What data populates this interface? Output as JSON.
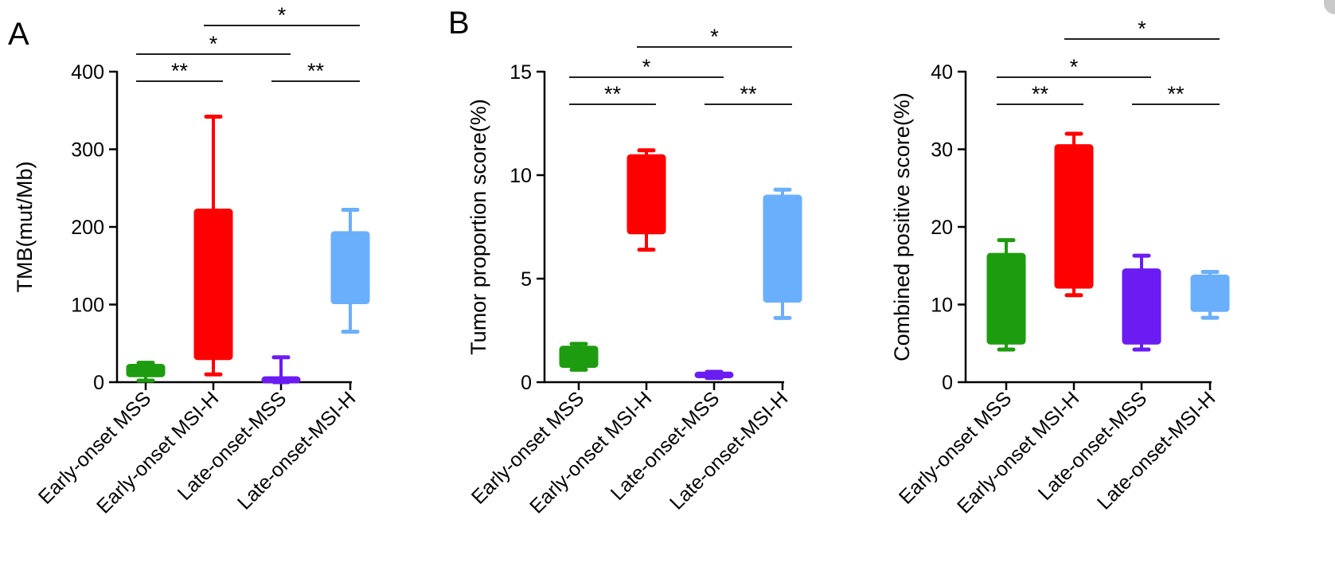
{
  "panel_letters": [
    "A",
    "B"
  ],
  "chart_data": [
    {
      "type": "box",
      "panel": "A",
      "title": "",
      "xlabel": "",
      "ylabel": "TMB(mut/Mb)",
      "ylim": [
        0,
        400
      ],
      "yticks": [
        0,
        100,
        200,
        300,
        400
      ],
      "categories": [
        "Early-onset MSS",
        "Early-onset MSI-H",
        "Late-onset-MSS",
        "Late-onset-MSI-H"
      ],
      "colors": [
        "#1e9c10",
        "#ff0000",
        "#6b1cf2",
        "#6aaffb"
      ],
      "boxes": [
        {
          "min": 2,
          "q1": 8,
          "q3": 22,
          "max": 25
        },
        {
          "min": 10,
          "q1": 30,
          "q3": 222,
          "max": 342
        },
        {
          "min": 0,
          "q1": 0,
          "q3": 6,
          "max": 32
        },
        {
          "min": 65,
          "q1": 102,
          "q3": 193,
          "max": 222
        }
      ],
      "significance": [
        {
          "from": 0,
          "to": 1,
          "label": "**",
          "level": 0
        },
        {
          "from": 2,
          "to": 3,
          "label": "**",
          "level": 0
        },
        {
          "from": 0,
          "to": 2,
          "label": "*",
          "level": 1
        },
        {
          "from": 1,
          "to": 3,
          "label": "*",
          "level": 2
        }
      ]
    },
    {
      "type": "box",
      "panel": "B",
      "title": "",
      "xlabel": "",
      "ylabel": "Tumor proportion score(%)",
      "ylim": [
        0,
        15
      ],
      "yticks": [
        0,
        5,
        10,
        15
      ],
      "categories": [
        "Early-onset MSS",
        "Early-onset MSI-H",
        "Late-onset-MSS",
        "Late-onset-MSI-H"
      ],
      "colors": [
        "#1e9c10",
        "#ff0000",
        "#6b1cf2",
        "#6aaffb"
      ],
      "boxes": [
        {
          "min": 0.6,
          "q1": 0.75,
          "q3": 1.7,
          "max": 1.85
        },
        {
          "min": 6.4,
          "q1": 7.2,
          "q3": 10.95,
          "max": 11.2
        },
        {
          "min": 0.2,
          "q1": 0.25,
          "q3": 0.45,
          "max": 0.5
        },
        {
          "min": 3.1,
          "q1": 3.9,
          "q3": 9.0,
          "max": 9.3
        }
      ],
      "significance": [
        {
          "from": 0,
          "to": 1,
          "label": "**",
          "level": 0
        },
        {
          "from": 2,
          "to": 3,
          "label": "**",
          "level": 0
        },
        {
          "from": 0,
          "to": 2,
          "label": "*",
          "level": 1
        },
        {
          "from": 1,
          "to": 3,
          "label": "*",
          "level": 2
        }
      ]
    },
    {
      "type": "box",
      "panel": "B",
      "title": "",
      "xlabel": "",
      "ylabel": "Combined positive score(%)",
      "ylim": [
        0,
        40
      ],
      "yticks": [
        0,
        10,
        20,
        30,
        40
      ],
      "categories": [
        "Early-onset MSS",
        "Early-onset MSI-H",
        "Late-onset-MSS",
        "Late-onset-MSI-H"
      ],
      "colors": [
        "#1e9c10",
        "#ff0000",
        "#6b1cf2",
        "#6aaffb"
      ],
      "boxes": [
        {
          "min": 4.2,
          "q1": 5,
          "q3": 16.5,
          "max": 18.3
        },
        {
          "min": 11.2,
          "q1": 12.2,
          "q3": 30.5,
          "max": 32
        },
        {
          "min": 4.2,
          "q1": 5,
          "q3": 14.5,
          "max": 16.3
        },
        {
          "min": 8.3,
          "q1": 9.2,
          "q3": 13.7,
          "max": 14.2
        }
      ],
      "significance": [
        {
          "from": 0,
          "to": 1,
          "label": "**",
          "level": 0
        },
        {
          "from": 2,
          "to": 3,
          "label": "**",
          "level": 0
        },
        {
          "from": 0,
          "to": 2,
          "label": "*",
          "level": 1
        },
        {
          "from": 1,
          "to": 3,
          "label": "*",
          "level": 2
        }
      ]
    }
  ]
}
